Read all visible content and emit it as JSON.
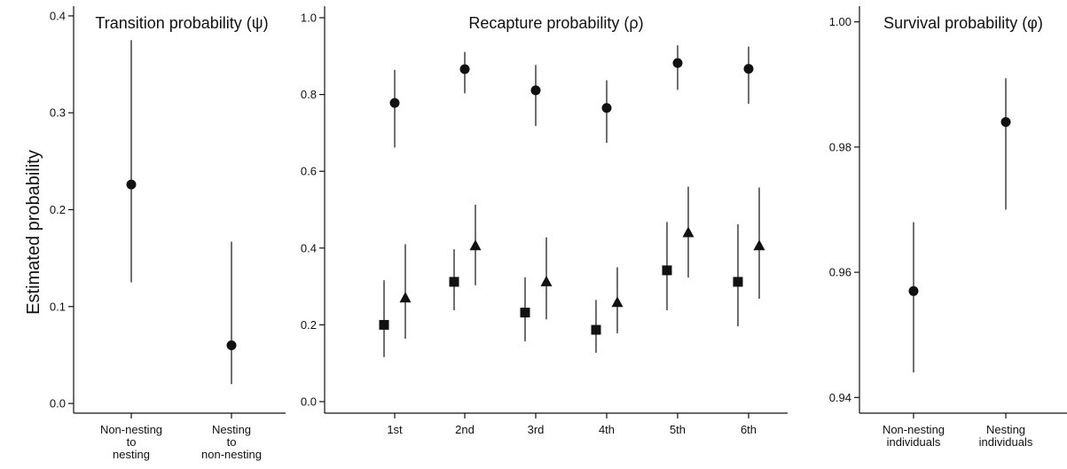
{
  "ylabel": "Estimated probability",
  "colors": {
    "ink": "#111111",
    "background": "#ffffff"
  },
  "chart_data": [
    {
      "type": "scatter",
      "title": "Transition probability (ψ)",
      "ylim": [
        -0.01,
        0.41
      ],
      "yticks": [
        0.0,
        0.1,
        0.2,
        0.3,
        0.4
      ],
      "ytick_labels": [
        "0.0",
        "0.1",
        "0.2",
        "0.3",
        "0.4"
      ],
      "categories": [
        {
          "lines": [
            "Non-nesting",
            "to",
            "nesting"
          ]
        },
        {
          "lines": [
            "Nesting",
            "to",
            "non-nesting"
          ]
        }
      ],
      "series": [
        {
          "marker": "circle",
          "points": [
            {
              "cat": 0,
              "y": 0.226,
              "lo": 0.125,
              "hi": 0.375
            },
            {
              "cat": 1,
              "y": 0.06,
              "lo": 0.02,
              "hi": 0.167
            }
          ]
        }
      ]
    },
    {
      "type": "scatter",
      "title": "Recapture probability (ρ)",
      "ylim": [
        -0.03,
        1.03
      ],
      "yticks": [
        0.0,
        0.2,
        0.4,
        0.6,
        0.8,
        1.0
      ],
      "ytick_labels": [
        "0.0",
        "0.2",
        "0.4",
        "0.6",
        "0.8",
        "1.0"
      ],
      "categories": [
        {
          "lines": [
            "1st"
          ]
        },
        {
          "lines": [
            "2nd"
          ]
        },
        {
          "lines": [
            "3rd"
          ]
        },
        {
          "lines": [
            "4th"
          ]
        },
        {
          "lines": [
            "5th"
          ]
        },
        {
          "lines": [
            "6th"
          ]
        }
      ],
      "series": [
        {
          "marker": "circle",
          "offset": 0,
          "points": [
            {
              "cat": 0,
              "y": 0.778,
              "lo": 0.662,
              "hi": 0.864
            },
            {
              "cat": 1,
              "y": 0.866,
              "lo": 0.803,
              "hi": 0.911
            },
            {
              "cat": 2,
              "y": 0.811,
              "lo": 0.718,
              "hi": 0.877
            },
            {
              "cat": 3,
              "y": 0.765,
              "lo": 0.674,
              "hi": 0.837
            },
            {
              "cat": 4,
              "y": 0.882,
              "lo": 0.812,
              "hi": 0.928
            },
            {
              "cat": 5,
              "y": 0.867,
              "lo": 0.776,
              "hi": 0.925
            }
          ]
        },
        {
          "marker": "square",
          "offset": -1,
          "points": [
            {
              "cat": 0,
              "y": 0.2,
              "lo": 0.116,
              "hi": 0.316
            },
            {
              "cat": 1,
              "y": 0.312,
              "lo": 0.238,
              "hi": 0.397
            },
            {
              "cat": 2,
              "y": 0.232,
              "lo": 0.157,
              "hi": 0.324
            },
            {
              "cat": 3,
              "y": 0.187,
              "lo": 0.127,
              "hi": 0.265
            },
            {
              "cat": 4,
              "y": 0.342,
              "lo": 0.238,
              "hi": 0.468
            },
            {
              "cat": 5,
              "y": 0.312,
              "lo": 0.196,
              "hi": 0.462
            }
          ]
        },
        {
          "marker": "triangle",
          "offset": 1,
          "points": [
            {
              "cat": 0,
              "y": 0.27,
              "lo": 0.164,
              "hi": 0.41
            },
            {
              "cat": 1,
              "y": 0.406,
              "lo": 0.303,
              "hi": 0.513
            },
            {
              "cat": 2,
              "y": 0.312,
              "lo": 0.214,
              "hi": 0.428
            },
            {
              "cat": 3,
              "y": 0.258,
              "lo": 0.178,
              "hi": 0.35
            },
            {
              "cat": 4,
              "y": 0.44,
              "lo": 0.323,
              "hi": 0.56
            },
            {
              "cat": 5,
              "y": 0.406,
              "lo": 0.268,
              "hi": 0.558
            }
          ]
        }
      ]
    },
    {
      "type": "scatter",
      "title": "Survival probability (φ)",
      "ylim": [
        0.9375,
        1.0025
      ],
      "yticks": [
        0.94,
        0.96,
        0.98,
        1.0
      ],
      "ytick_labels": [
        "0.94",
        "0.96",
        "0.98",
        "1.00"
      ],
      "categories": [
        {
          "lines": [
            "Non-nesting",
            "individuals"
          ]
        },
        {
          "lines": [
            "Nesting",
            "individuals"
          ]
        }
      ],
      "series": [
        {
          "marker": "circle",
          "points": [
            {
              "cat": 0,
              "y": 0.957,
              "lo": 0.944,
              "hi": 0.968
            },
            {
              "cat": 1,
              "y": 0.984,
              "lo": 0.97,
              "hi": 0.991
            }
          ]
        }
      ]
    }
  ]
}
